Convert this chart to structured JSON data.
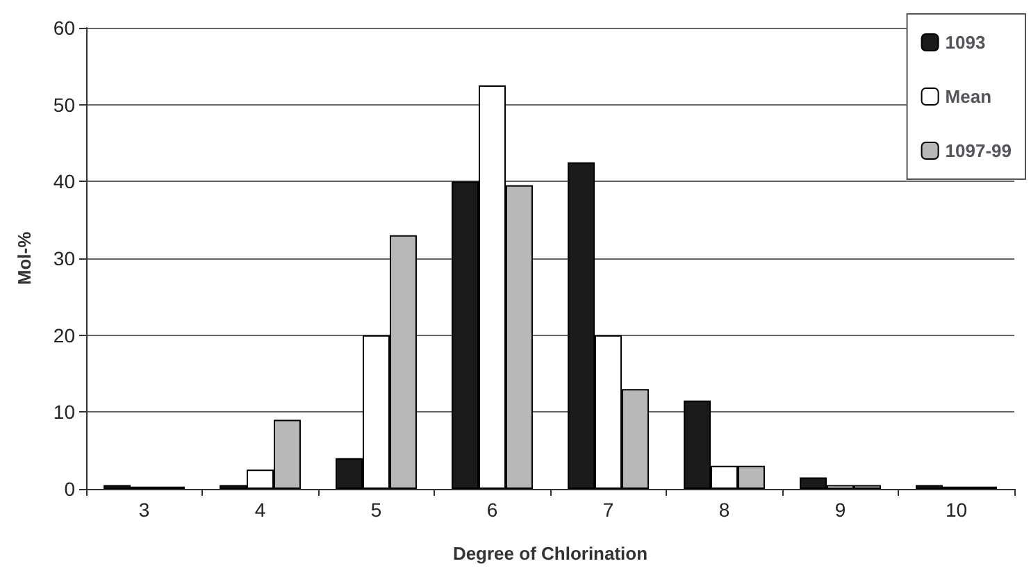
{
  "chart_data": {
    "type": "bar",
    "xlabel": "Degree of Chlorination",
    "ylabel": "Mol-%",
    "categories": [
      "3",
      "4",
      "5",
      "6",
      "7",
      "8",
      "9",
      "10"
    ],
    "series": [
      {
        "name": "1093",
        "color": "#1a1a1a",
        "values": [
          0.5,
          0.5,
          4,
          40,
          42.5,
          11.5,
          1.5,
          0.5
        ]
      },
      {
        "name": "Mean",
        "color": "#ffffff",
        "values": [
          0.3,
          2.5,
          20,
          52.5,
          20,
          3,
          0.5,
          0.3
        ]
      },
      {
        "name": "1097-99",
        "color": "#b8b8b8",
        "values": [
          0.3,
          9,
          33,
          39.5,
          13,
          3,
          0.5,
          0.3
        ]
      }
    ],
    "ylim": [
      0,
      60
    ],
    "yticks": [
      0,
      10,
      20,
      30,
      40,
      50,
      60
    ],
    "grid": "y",
    "legend": "top right"
  }
}
